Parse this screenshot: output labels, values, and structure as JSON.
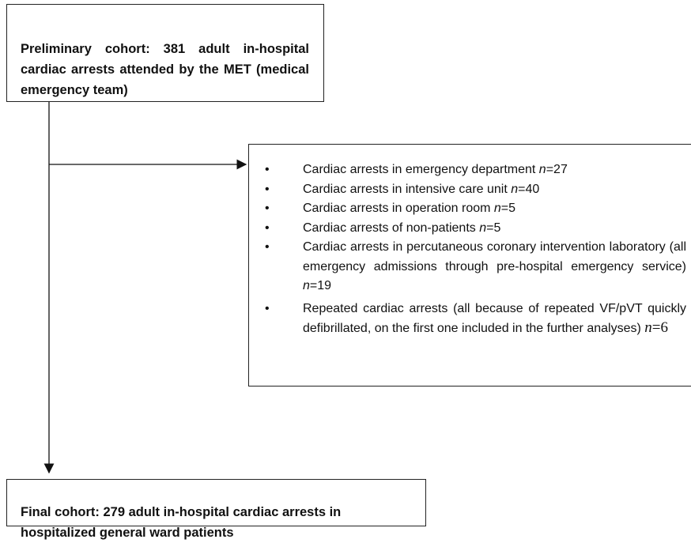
{
  "top_box": {
    "text": "Preliminary cohort: 381 adult in-hospital cardiac arrests attended by the MET (medical emergency team)"
  },
  "exclusions": [
    {
      "text": "Cardiac arrests in emergency department ",
      "n": "n",
      "count": "=27"
    },
    {
      "text": "Cardiac arrests in intensive care unit ",
      "n": "n",
      "count": "=40"
    },
    {
      "text": "Cardiac arrests in operation room ",
      "n": "n",
      "count": "=5"
    },
    {
      "text": "Cardiac arrests of non-patients ",
      "n": "n",
      "count": "=5"
    },
    {
      "text": "Cardiac arrests in percutaneous coronary intervention laboratory (all emergency admissions through pre-hospital emergency service) ",
      "n": "n",
      "count": "=19"
    },
    {
      "text": "Repeated cardiac arrests (all because of repeated VF/pVT quickly defibrillated, on the first one included in the further analyses) ",
      "n": "n",
      "count": "=6"
    }
  ],
  "bottom_box": {
    "text": "Final cohort: 279 adult in-hospital cardiac arrests in hospitalized general ward patients"
  }
}
